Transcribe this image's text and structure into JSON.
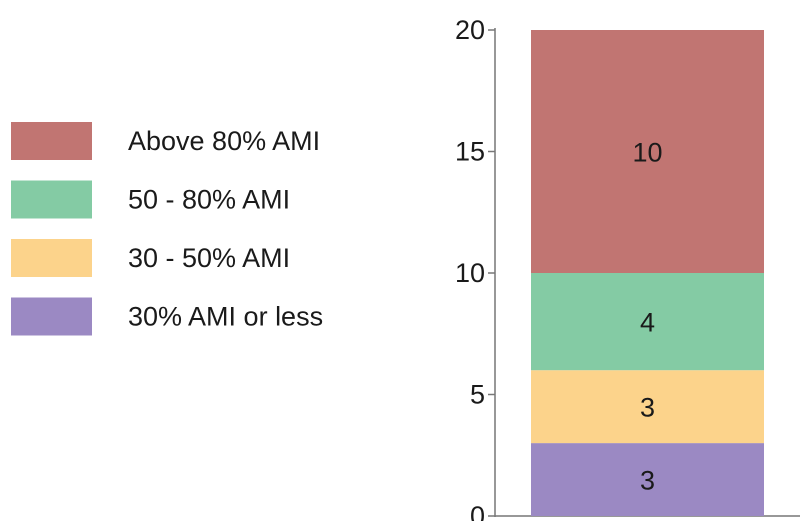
{
  "chart_data": {
    "type": "bar",
    "stacked": true,
    "categories": [
      ""
    ],
    "series": [
      {
        "name": "30% AMI or less",
        "values": [
          3
        ],
        "color": "#9b89c3"
      },
      {
        "name": "30 - 50% AMI",
        "values": [
          3
        ],
        "color": "#fcd38b"
      },
      {
        "name": "50 - 80% AMI",
        "values": [
          4
        ],
        "color": "#84cba4"
      },
      {
        "name": "Above 80% AMI",
        "values": [
          10
        ],
        "color": "#c17572"
      }
    ],
    "ylim": [
      0,
      20
    ],
    "yticks": [
      "0",
      "5",
      "10",
      "15",
      "20"
    ],
    "grid": false,
    "legend": {
      "placement": "left",
      "order": [
        "Above 80% AMI",
        "50 - 80% AMI",
        "30 - 50% AMI",
        "30% AMI or less"
      ]
    },
    "title": "",
    "xlabel": "",
    "ylabel": ""
  }
}
